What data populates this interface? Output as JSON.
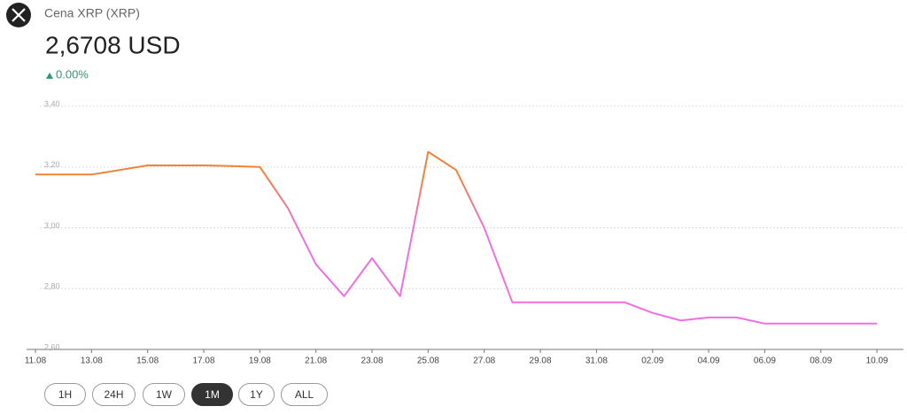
{
  "header": {
    "title": "Cena XRP (XRP)",
    "price": "2,6708 USD",
    "change": "0.00%"
  },
  "range_buttons": [
    "1H",
    "24H",
    "1W",
    "1M",
    "1Y",
    "ALL"
  ],
  "active_button": 3,
  "chart_data": {
    "type": "line",
    "x": [
      "11.08",
      "12.08",
      "13.08",
      "14.08",
      "15.08",
      "16.08",
      "17.08",
      "18.08",
      "19.08",
      "20.08",
      "21.08",
      "22.08",
      "23.08",
      "24.08",
      "25.08",
      "26.08",
      "27.08",
      "28.08",
      "29.08",
      "30.08",
      "31.08",
      "01.09",
      "02.09",
      "03.09",
      "04.09",
      "05.09",
      "06.09",
      "07.09",
      "08.09",
      "09.09",
      "10.09"
    ],
    "series": [
      {
        "colors": [
          "#f0823a",
          "#ef6fe0"
        ],
        "values": [
          3.175,
          3.175,
          3.175,
          3.19,
          3.205,
          3.205,
          3.205,
          3.203,
          3.2,
          3.065,
          2.88,
          2.775,
          2.9,
          2.775,
          3.25,
          3.19,
          3.0,
          2.755,
          2.755,
          2.755,
          2.755,
          2.755,
          2.72,
          2.695,
          2.705,
          2.705,
          2.685,
          2.685,
          2.685,
          2.685,
          2.685
        ]
      }
    ],
    "ylim": [
      2.6,
      3.4
    ],
    "yticks": [
      {
        "value": 2.6,
        "label": "2,60"
      },
      {
        "value": 2.8,
        "label": "2,80"
      },
      {
        "value": 3.0,
        "label": "3,00"
      },
      {
        "value": 3.2,
        "label": "3,20"
      },
      {
        "value": 3.4,
        "label": "3,40"
      }
    ],
    "grid": true
  }
}
